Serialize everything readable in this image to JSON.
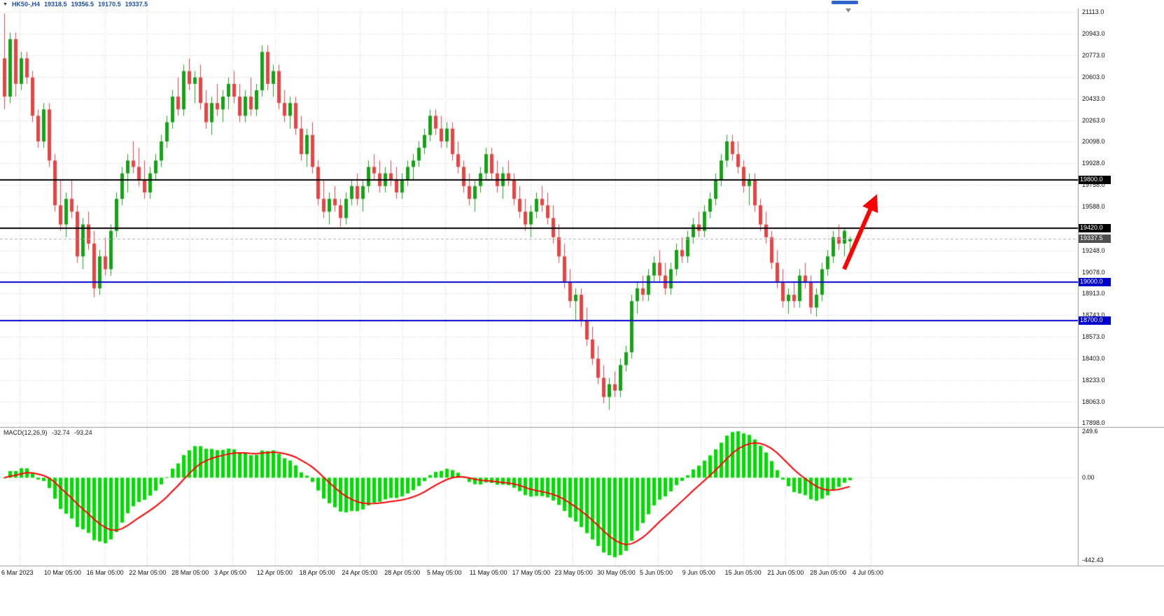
{
  "header": {
    "symbol_period": "HK50-,H4",
    "open": "19318.5",
    "high": "19356.5",
    "low": "19170.5",
    "close": "19337.5"
  },
  "colors": {
    "bull": "#16a216",
    "bear": "#e64545",
    "grid": "#cdcdcd",
    "separator": "#9a9a9a",
    "macd_hist": "#00dd00",
    "macd_signal": "#ff0000",
    "scrollbar": "#2e66c9",
    "header_text": "#1b4fae",
    "axis_text": "#111111"
  },
  "macd_panel": {
    "title": "MACD(12,26,9)",
    "main_value": "-32.74",
    "signal_value": "-93.24",
    "params": [
      12,
      26,
      9
    ],
    "ticks": [
      {
        "label": "249.6",
        "value": 249.6
      },
      {
        "label": "0.00",
        "value": 0
      },
      {
        "label": "-442.43",
        "value": -442.43
      }
    ]
  },
  "chart_data": {
    "type": "candlestick",
    "symbol": "HK50-",
    "timeframe": "H4",
    "last_bar": {
      "open": 19318.5,
      "high": 19356.5,
      "low": 19170.5,
      "close": 19337.5
    },
    "y_axis": {
      "max": 21113.0,
      "min": 17898.0,
      "ticks": [
        21113.0,
        20943.0,
        20773.0,
        20603.0,
        20433.0,
        20263.0,
        20098.0,
        19928.0,
        19758.0,
        19588.0,
        19418.0,
        19248.0,
        19078.0,
        18913.0,
        18743.0,
        18573.0,
        18403.0,
        18233.0,
        18063.0,
        17898.0
      ]
    },
    "x_labels": [
      "6 Mar 2023",
      "10 Mar 05:00",
      "16 Mar 05:00",
      "22 Mar 05:00",
      "28 Mar 05:00",
      "3 Apr 05:00",
      "12 Apr 05:00",
      "18 Apr 05:00",
      "24 Apr 05:00",
      "28 Apr 05:00",
      "5 May 05:00",
      "11 May 05:00",
      "17 May 05:00",
      "23 May 05:00",
      "30 May 05:00",
      "5 Jun 05:00",
      "9 Jun 05:00",
      "15 Jun 05:00",
      "21 Jun 05:00",
      "28 Jun 05:00",
      "4 Jul 05:00"
    ],
    "overlays": {
      "hlines": [
        {
          "name": "resistance-19800",
          "price": 19800.0,
          "label": "19800.0",
          "color": "#000000",
          "label_bg": "#000000",
          "width": 2,
          "style": "solid"
        },
        {
          "name": "resistance-19420",
          "price": 19420.0,
          "label": "19420.0",
          "color": "#000000",
          "label_bg": "#000000",
          "width": 2,
          "style": "solid"
        },
        {
          "name": "current-price",
          "price": 19337.5,
          "label": "19337.5",
          "color": "#b4b4b4",
          "label_bg": "#4f4f4f",
          "width": 1,
          "style": "dashed"
        },
        {
          "name": "support-19000",
          "price": 19000.0,
          "label": "19000.0",
          "color": "#0000cc",
          "label_bg": "#0000cc",
          "width": 2,
          "style": "solid"
        },
        {
          "name": "support-18700",
          "price": 18700.0,
          "label": "18700.0",
          "color": "#0000cc",
          "label_bg": "#0000cc",
          "width": 2,
          "style": "solid"
        }
      ],
      "arrow": {
        "type": "up-arrow",
        "color": "#ff0000",
        "start_price": 19100,
        "end_price": 19650
      }
    },
    "candles": [
      [
        20750,
        21100,
        20350,
        20450
      ],
      [
        20450,
        20950,
        20400,
        20900
      ],
      [
        20900,
        20950,
        20450,
        20550
      ],
      [
        20550,
        20800,
        20500,
        20750
      ],
      [
        20750,
        20800,
        20550,
        20600
      ],
      [
        20600,
        20650,
        20250,
        20300
      ],
      [
        20300,
        20350,
        20050,
        20100
      ],
      [
        20100,
        20400,
        20050,
        20350
      ],
      [
        20350,
        20400,
        19900,
        19950
      ],
      [
        19950,
        20000,
        19550,
        19600
      ],
      [
        19600,
        19800,
        19400,
        19450
      ],
      [
        19450,
        19700,
        19350,
        19650
      ],
      [
        19650,
        19800,
        19500,
        19550
      ],
      [
        19550,
        19600,
        19150,
        19200
      ],
      [
        19200,
        19500,
        19100,
        19450
      ],
      [
        19450,
        19550,
        19250,
        19300
      ],
      [
        19300,
        19400,
        18880,
        18950
      ],
      [
        18950,
        19250,
        18900,
        19200
      ],
      [
        19200,
        19350,
        19050,
        19100
      ],
      [
        19100,
        19450,
        19050,
        19400
      ],
      [
        19400,
        19700,
        19350,
        19650
      ],
      [
        19650,
        19900,
        19600,
        19850
      ],
      [
        19850,
        20000,
        19700,
        19950
      ],
      [
        19950,
        20100,
        19850,
        19900
      ],
      [
        19900,
        20050,
        19750,
        19800
      ],
      [
        19800,
        19950,
        19650,
        19700
      ],
      [
        19700,
        19900,
        19650,
        19850
      ],
      [
        19850,
        20000,
        19800,
        19950
      ],
      [
        19950,
        20150,
        19900,
        20100
      ],
      [
        20100,
        20300,
        20050,
        20250
      ],
      [
        20250,
        20500,
        20200,
        20450
      ],
      [
        20450,
        20600,
        20300,
        20350
      ],
      [
        20350,
        20700,
        20300,
        20650
      ],
      [
        20650,
        20750,
        20500,
        20550
      ],
      [
        20550,
        20650,
        20400,
        20600
      ],
      [
        20600,
        20700,
        20350,
        20400
      ],
      [
        20400,
        20500,
        20200,
        20250
      ],
      [
        20250,
        20450,
        20150,
        20400
      ],
      [
        20400,
        20550,
        20300,
        20350
      ],
      [
        20350,
        20500,
        20250,
        20450
      ],
      [
        20450,
        20600,
        20350,
        20550
      ],
      [
        20550,
        20650,
        20400,
        20450
      ],
      [
        20450,
        20550,
        20250,
        20300
      ],
      [
        20300,
        20500,
        20250,
        20450
      ],
      [
        20450,
        20600,
        20300,
        20350
      ],
      [
        20350,
        20550,
        20300,
        20500
      ],
      [
        20500,
        20850,
        20450,
        20800
      ],
      [
        20800,
        20850,
        20500,
        20550
      ],
      [
        20550,
        20700,
        20450,
        20650
      ],
      [
        20650,
        20700,
        20350,
        20400
      ],
      [
        20400,
        20500,
        20250,
        20300
      ],
      [
        20300,
        20450,
        20200,
        20400
      ],
      [
        20400,
        20450,
        20150,
        20200
      ],
      [
        20200,
        20300,
        19950,
        20000
      ],
      [
        20000,
        20200,
        19900,
        20150
      ],
      [
        20150,
        20250,
        19850,
        19900
      ],
      [
        19900,
        19950,
        19600,
        19650
      ],
      [
        19650,
        19800,
        19500,
        19550
      ],
      [
        19550,
        19700,
        19450,
        19650
      ],
      [
        19650,
        19750,
        19550,
        19600
      ],
      [
        19600,
        19650,
        19430,
        19500
      ],
      [
        19500,
        19700,
        19450,
        19650
      ],
      [
        19650,
        19800,
        19600,
        19750
      ],
      [
        19750,
        19850,
        19600,
        19650
      ],
      [
        19650,
        19800,
        19550,
        19750
      ],
      [
        19750,
        19950,
        19700,
        19900
      ],
      [
        19900,
        20000,
        19800,
        19850
      ],
      [
        19850,
        19950,
        19700,
        19750
      ],
      [
        19750,
        19900,
        19700,
        19850
      ],
      [
        19850,
        19950,
        19750,
        19800
      ],
      [
        19800,
        19900,
        19650,
        19700
      ],
      [
        19700,
        19850,
        19650,
        19800
      ],
      [
        19800,
        19950,
        19750,
        19900
      ],
      [
        19900,
        20000,
        19800,
        19950
      ],
      [
        19950,
        20100,
        19900,
        20050
      ],
      [
        20050,
        20200,
        20000,
        20150
      ],
      [
        20150,
        20350,
        20100,
        20300
      ],
      [
        20300,
        20350,
        20150,
        20200
      ],
      [
        20200,
        20300,
        20050,
        20100
      ],
      [
        20100,
        20250,
        20050,
        20200
      ],
      [
        20200,
        20250,
        19950,
        20000
      ],
      [
        20000,
        20100,
        19850,
        19900
      ],
      [
        19900,
        19950,
        19700,
        19750
      ],
      [
        19750,
        19850,
        19600,
        19650
      ],
      [
        19650,
        19800,
        19550,
        19750
      ],
      [
        19750,
        19900,
        19700,
        19850
      ],
      [
        19850,
        20050,
        19800,
        20000
      ],
      [
        20000,
        20050,
        19800,
        19850
      ],
      [
        19850,
        19950,
        19700,
        19750
      ],
      [
        19750,
        19900,
        19650,
        19850
      ],
      [
        19850,
        19950,
        19750,
        19800
      ],
      [
        19800,
        19850,
        19600,
        19650
      ],
      [
        19650,
        19750,
        19500,
        19550
      ],
      [
        19550,
        19650,
        19400,
        19450
      ],
      [
        19450,
        19600,
        19350,
        19550
      ],
      [
        19550,
        19700,
        19500,
        19650
      ],
      [
        19650,
        19750,
        19550,
        19600
      ],
      [
        19600,
        19700,
        19450,
        19500
      ],
      [
        19500,
        19600,
        19300,
        19350
      ],
      [
        19350,
        19450,
        19150,
        19200
      ],
      [
        19200,
        19300,
        18950,
        19000
      ],
      [
        19000,
        19100,
        18800,
        18850
      ],
      [
        18850,
        18950,
        18700,
        18900
      ],
      [
        18900,
        18950,
        18650,
        18700
      ],
      [
        18700,
        18800,
        18500,
        18550
      ],
      [
        18550,
        18650,
        18350,
        18400
      ],
      [
        18400,
        18500,
        18200,
        18250
      ],
      [
        18250,
        18350,
        18050,
        18100
      ],
      [
        18100,
        18250,
        18000,
        18200
      ],
      [
        18200,
        18300,
        18100,
        18150
      ],
      [
        18150,
        18400,
        18100,
        18350
      ],
      [
        18350,
        18500,
        18300,
        18450
      ],
      [
        18450,
        18900,
        18400,
        18850
      ],
      [
        18850,
        19000,
        18750,
        18950
      ],
      [
        18950,
        19050,
        18850,
        18900
      ],
      [
        18900,
        19100,
        18850,
        19050
      ],
      [
        19050,
        19200,
        19000,
        19150
      ],
      [
        19150,
        19250,
        19000,
        19050
      ],
      [
        19050,
        19150,
        18900,
        18950
      ],
      [
        18950,
        19150,
        18900,
        19100
      ],
      [
        19100,
        19300,
        19050,
        19250
      ],
      [
        19250,
        19350,
        19150,
        19200
      ],
      [
        19200,
        19400,
        19150,
        19350
      ],
      [
        19350,
        19500,
        19300,
        19450
      ],
      [
        19450,
        19550,
        19350,
        19400
      ],
      [
        19400,
        19600,
        19350,
        19550
      ],
      [
        19550,
        19700,
        19500,
        19650
      ],
      [
        19650,
        19850,
        19600,
        19800
      ],
      [
        19800,
        20000,
        19750,
        19950
      ],
      [
        19950,
        20150,
        19900,
        20100
      ],
      [
        20100,
        20150,
        19950,
        20000
      ],
      [
        20000,
        20100,
        19850,
        19900
      ],
      [
        19900,
        19950,
        19700,
        19750
      ],
      [
        19750,
        19850,
        19600,
        19800
      ],
      [
        19800,
        19850,
        19550,
        19600
      ],
      [
        19600,
        19650,
        19400,
        19450
      ],
      [
        19450,
        19550,
        19300,
        19350
      ],
      [
        19350,
        19400,
        19100,
        19150
      ],
      [
        19150,
        19250,
        18950,
        19000
      ],
      [
        19000,
        19100,
        18800,
        18850
      ],
      [
        18850,
        18950,
        18750,
        18900
      ],
      [
        18900,
        19000,
        18800,
        18850
      ],
      [
        18850,
        19100,
        18800,
        19050
      ],
      [
        19050,
        19150,
        18950,
        19000
      ],
      [
        19000,
        19050,
        18750,
        18800
      ],
      [
        18800,
        18950,
        18730,
        18900
      ],
      [
        18900,
        19150,
        18850,
        19100
      ],
      [
        19100,
        19250,
        19050,
        19200
      ],
      [
        19200,
        19400,
        19150,
        19350
      ],
      [
        19350,
        19450,
        19250,
        19300
      ],
      [
        19300,
        19420,
        19200,
        19400
      ],
      [
        19318.5,
        19356.5,
        19170.5,
        19337.5
      ]
    ]
  }
}
